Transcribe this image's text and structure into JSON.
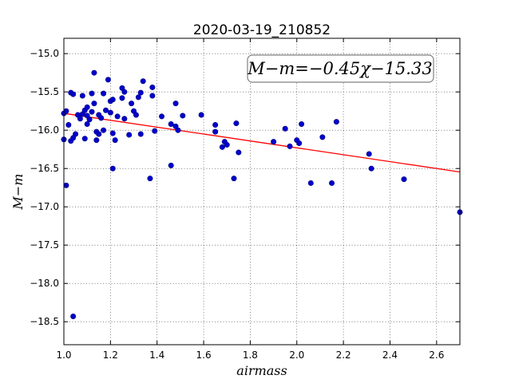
{
  "chart_data": {
    "type": "scatter",
    "title": "2020-03-19_210852",
    "xlabel": "airmass",
    "ylabel": "M−m",
    "xlim": [
      1.0,
      2.7
    ],
    "ylim": [
      -18.8,
      -14.8
    ],
    "xticks": [
      1.0,
      1.2,
      1.4,
      1.6,
      1.8,
      2.0,
      2.2,
      2.4,
      2.6
    ],
    "xtick_labels": [
      "1.0",
      "1.2",
      "1.4",
      "1.6",
      "1.8",
      "2.0",
      "2.2",
      "2.4",
      "2.6"
    ],
    "yticks": [
      -15.0,
      -15.5,
      -16.0,
      -16.5,
      -17.0,
      -17.5,
      -18.0,
      -18.5
    ],
    "ytick_labels": [
      "−15.0",
      "−15.5",
      "−16.0",
      "−16.5",
      "−17.0",
      "−17.5",
      "−18.0",
      "−18.5"
    ],
    "grid": true,
    "annotation": "M−m=−0.45χ−15.33",
    "fit": {
      "slope": -0.45,
      "intercept": -15.33,
      "color": "#ff0000"
    },
    "marker_color": "#0000cc",
    "points": [
      {
        "x": 1.0,
        "y": -16.12
      },
      {
        "x": 1.0,
        "y": -15.78
      },
      {
        "x": 1.01,
        "y": -15.75
      },
      {
        "x": 1.01,
        "y": -16.72
      },
      {
        "x": 1.02,
        "y": -15.93
      },
      {
        "x": 1.03,
        "y": -16.14
      },
      {
        "x": 1.03,
        "y": -15.51
      },
      {
        "x": 1.04,
        "y": -16.1
      },
      {
        "x": 1.04,
        "y": -15.53
      },
      {
        "x": 1.04,
        "y": -18.43
      },
      {
        "x": 1.05,
        "y": -16.05
      },
      {
        "x": 1.06,
        "y": -15.8
      },
      {
        "x": 1.07,
        "y": -15.85
      },
      {
        "x": 1.08,
        "y": -15.55
      },
      {
        "x": 1.08,
        "y": -15.79
      },
      {
        "x": 1.09,
        "y": -16.11
      },
      {
        "x": 1.09,
        "y": -15.74
      },
      {
        "x": 1.1,
        "y": -15.7
      },
      {
        "x": 1.1,
        "y": -15.92
      },
      {
        "x": 1.1,
        "y": -15.81
      },
      {
        "x": 1.11,
        "y": -15.86
      },
      {
        "x": 1.12,
        "y": -15.76
      },
      {
        "x": 1.12,
        "y": -15.52
      },
      {
        "x": 1.13,
        "y": -15.25
      },
      {
        "x": 1.13,
        "y": -15.65
      },
      {
        "x": 1.14,
        "y": -16.02
      },
      {
        "x": 1.14,
        "y": -16.13
      },
      {
        "x": 1.15,
        "y": -16.05
      },
      {
        "x": 1.15,
        "y": -15.8
      },
      {
        "x": 1.16,
        "y": -15.84
      },
      {
        "x": 1.17,
        "y": -16.0
      },
      {
        "x": 1.17,
        "y": -15.52
      },
      {
        "x": 1.18,
        "y": -15.74
      },
      {
        "x": 1.19,
        "y": -15.34
      },
      {
        "x": 1.2,
        "y": -15.77
      },
      {
        "x": 1.2,
        "y": -15.62
      },
      {
        "x": 1.21,
        "y": -16.5
      },
      {
        "x": 1.21,
        "y": -16.04
      },
      {
        "x": 1.21,
        "y": -15.6
      },
      {
        "x": 1.22,
        "y": -16.13
      },
      {
        "x": 1.23,
        "y": -15.82
      },
      {
        "x": 1.25,
        "y": -15.45
      },
      {
        "x": 1.25,
        "y": -15.58
      },
      {
        "x": 1.26,
        "y": -15.5
      },
      {
        "x": 1.26,
        "y": -15.85
      },
      {
        "x": 1.28,
        "y": -16.06
      },
      {
        "x": 1.29,
        "y": -15.65
      },
      {
        "x": 1.3,
        "y": -15.75
      },
      {
        "x": 1.31,
        "y": -15.8
      },
      {
        "x": 1.32,
        "y": -15.57
      },
      {
        "x": 1.33,
        "y": -15.51
      },
      {
        "x": 1.33,
        "y": -16.05
      },
      {
        "x": 1.34,
        "y": -15.36
      },
      {
        "x": 1.37,
        "y": -16.63
      },
      {
        "x": 1.38,
        "y": -15.44
      },
      {
        "x": 1.38,
        "y": -15.55
      },
      {
        "x": 1.39,
        "y": -16.01
      },
      {
        "x": 1.42,
        "y": -15.82
      },
      {
        "x": 1.46,
        "y": -16.46
      },
      {
        "x": 1.46,
        "y": -15.92
      },
      {
        "x": 1.48,
        "y": -15.95
      },
      {
        "x": 1.48,
        "y": -15.65
      },
      {
        "x": 1.49,
        "y": -16.0
      },
      {
        "x": 1.51,
        "y": -15.81
      },
      {
        "x": 1.59,
        "y": -15.8
      },
      {
        "x": 1.65,
        "y": -16.02
      },
      {
        "x": 1.65,
        "y": -15.93
      },
      {
        "x": 1.68,
        "y": -16.22
      },
      {
        "x": 1.69,
        "y": -16.15
      },
      {
        "x": 1.7,
        "y": -16.19
      },
      {
        "x": 1.73,
        "y": -16.63
      },
      {
        "x": 1.74,
        "y": -15.91
      },
      {
        "x": 1.75,
        "y": -16.29
      },
      {
        "x": 1.9,
        "y": -16.15
      },
      {
        "x": 1.95,
        "y": -15.98
      },
      {
        "x": 1.97,
        "y": -16.21
      },
      {
        "x": 2.0,
        "y": -16.13
      },
      {
        "x": 2.01,
        "y": -16.17
      },
      {
        "x": 2.02,
        "y": -15.92
      },
      {
        "x": 2.06,
        "y": -16.69
      },
      {
        "x": 2.11,
        "y": -16.09
      },
      {
        "x": 2.15,
        "y": -16.69
      },
      {
        "x": 2.17,
        "y": -15.89
      },
      {
        "x": 2.31,
        "y": -16.31
      },
      {
        "x": 2.32,
        "y": -16.5
      },
      {
        "x": 2.46,
        "y": -16.64
      },
      {
        "x": 2.7,
        "y": -17.07
      }
    ]
  }
}
